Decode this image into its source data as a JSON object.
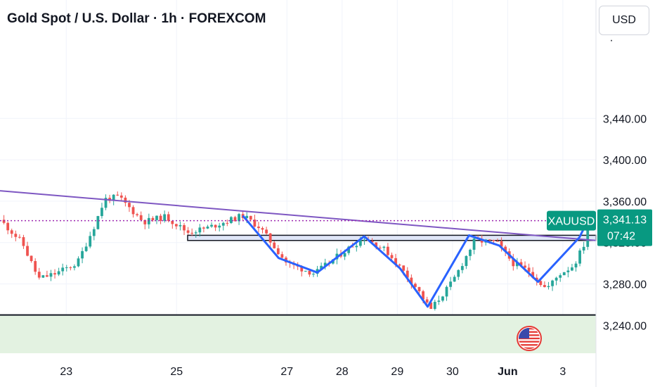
{
  "header": {
    "title": "Gold Spot / U.S. Dollar · 1h · FOREXCOM",
    "currency_button": "USD"
  },
  "colors": {
    "up": "#26a69a",
    "down": "#ef5350",
    "pattern_line": "#2962ff",
    "trend_line": "#7e57c2",
    "price_line": "#9c27b0",
    "zone_fill": "#e3f2e1",
    "box_fill": "#e0e6f8",
    "badge": "#089981"
  },
  "price_badge": {
    "symbol": "XAUUSD",
    "price": "3,341.13",
    "countdown": "07:42"
  },
  "chart_data": {
    "type": "candlestick",
    "title": "Gold Spot / U.S. Dollar · 1h · FOREXCOM",
    "y_ticks": [
      "3,240.00",
      "3,280.00",
      "3,320.00",
      "3,360.00",
      "3,400.00",
      "3,440.00"
    ],
    "y_tick_values": [
      3240,
      3280,
      3320,
      3360,
      3400,
      3440
    ],
    "ylim": [
      3213,
      3515
    ],
    "x_ticks": [
      "23",
      "25",
      "27",
      "28",
      "29",
      "30",
      "Jun",
      "3"
    ],
    "x_tick_values": [
      1,
      3,
      5,
      6,
      7,
      8,
      9,
      10
    ],
    "xlim": [
      -0.2,
      10.6
    ],
    "current_price": 3341.13,
    "trend_line": [
      {
        "x": -0.2,
        "y": 3370
      },
      {
        "x": 10.6,
        "y": 3322
      }
    ],
    "resistance_box": {
      "x0": 3.2,
      "x1": 10.6,
      "y0": 3322,
      "y1": 3327
    },
    "support_level": 3250,
    "path": [
      [
        -0.2,
        3342
      ],
      [
        0.2,
        3320
      ],
      [
        0.5,
        3285
      ],
      [
        0.8,
        3290
      ],
      [
        1.2,
        3300
      ],
      [
        1.5,
        3335
      ],
      [
        1.7,
        3362
      ],
      [
        1.95,
        3364
      ],
      [
        2.4,
        3340
      ],
      [
        2.8,
        3345
      ],
      [
        3.2,
        3330
      ],
      [
        3.55,
        3334
      ],
      [
        4.2,
        3346
      ],
      [
        4.5,
        3335
      ],
      [
        5.0,
        3300
      ],
      [
        5.5,
        3290
      ],
      [
        6.0,
        3310
      ],
      [
        6.4,
        3325
      ],
      [
        6.8,
        3312
      ],
      [
        7.3,
        3280
      ],
      [
        7.6,
        3255
      ],
      [
        8.0,
        3282
      ],
      [
        8.4,
        3322
      ],
      [
        8.8,
        3320
      ],
      [
        9.1,
        3300
      ],
      [
        9.4,
        3292
      ],
      [
        9.7,
        3275
      ],
      [
        9.95,
        3290
      ],
      [
        10.2,
        3298
      ],
      [
        10.4,
        3320
      ],
      [
        10.45,
        3341
      ]
    ],
    "pattern": [
      [
        4.2,
        3346
      ],
      [
        4.85,
        3305
      ],
      [
        5.55,
        3291
      ],
      [
        6.4,
        3326
      ],
      [
        7.05,
        3295
      ],
      [
        7.55,
        3258
      ],
      [
        8.3,
        3327
      ],
      [
        8.85,
        3317
      ],
      [
        9.55,
        3282
      ],
      [
        10.3,
        3325
      ],
      [
        10.45,
        3341
      ]
    ],
    "country_flag": "us-flag-icon"
  }
}
